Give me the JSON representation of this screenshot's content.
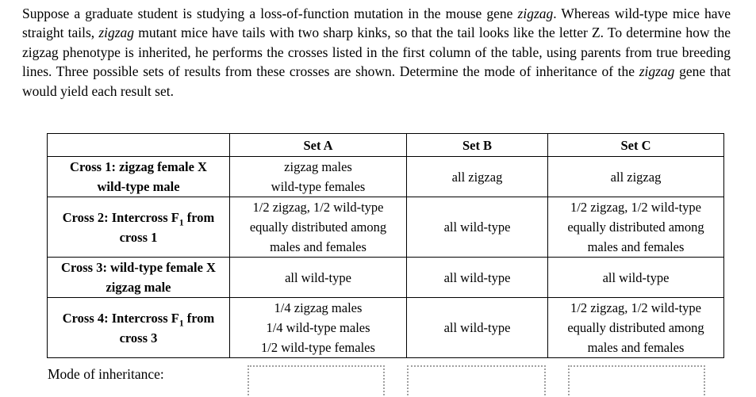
{
  "intro": {
    "lines": [
      {
        "pre": "Suppose a graduate student is studying a loss-of-function mutation in the mouse gene ",
        "it": "zigzag",
        "post": ". Whereas wild-type mice have"
      },
      {
        "pre": "straight tails, ",
        "it": "zigzag",
        "post": " mutant mice have tails with two sharp kinks, so that the tail looks like the letter Z. To determine how the"
      },
      {
        "pre": "zigzag phenotype is inherited, he performs the crosses listed in the first column of the table, using parents from true breeding",
        "it": "",
        "post": ""
      },
      {
        "pre": "lines. Three possible sets of results from these crosses are shown. Determine the mode of inheritance of the ",
        "it": "zigzag",
        "post": " gene that"
      },
      {
        "pre": "would yield each result set.",
        "it": "",
        "post": ""
      }
    ]
  },
  "table": {
    "headers": [
      "",
      "Set A",
      "Set B",
      "Set C"
    ],
    "rows": [
      {
        "label_pre": "Cross 1: zigzag female X\nwild-type male",
        "label_sub": "",
        "label_post": "",
        "set_a": "zigzag males\nwild-type females",
        "set_b": "all zigzag",
        "set_c": "all zigzag"
      },
      {
        "label_pre": "Cross 2: Intercross F",
        "label_sub": "1",
        "label_post": " from\ncross 1",
        "set_a": "1/2 zigzag, 1/2 wild-type\nequally distributed among\nmales and females",
        "set_b": "all wild-type",
        "set_c": "1/2 zigzag, 1/2 wild-type\nequally distributed among\nmales and females"
      },
      {
        "label_pre": "Cross 3: wild-type female X\nzigzag male",
        "label_sub": "",
        "label_post": "",
        "set_a": "all wild-type",
        "set_b": "all wild-type",
        "set_c": "all wild-type"
      },
      {
        "label_pre": "Cross 4: Intercross F",
        "label_sub": "1",
        "label_post": " from\ncross 3",
        "set_a": "1/4 zigzag males\n1/4 wild-type males\n1/2 wild-type females",
        "set_b": "all wild-type",
        "set_c": "1/2 zigzag, 1/2 wild-type\nequally distributed among\nmales and females"
      }
    ]
  },
  "footer": {
    "mode_label": "Mode of inheritance:"
  },
  "colors": {
    "text": "#000000",
    "table_border": "#000000",
    "answer_box_border": "#a0a0a0"
  }
}
